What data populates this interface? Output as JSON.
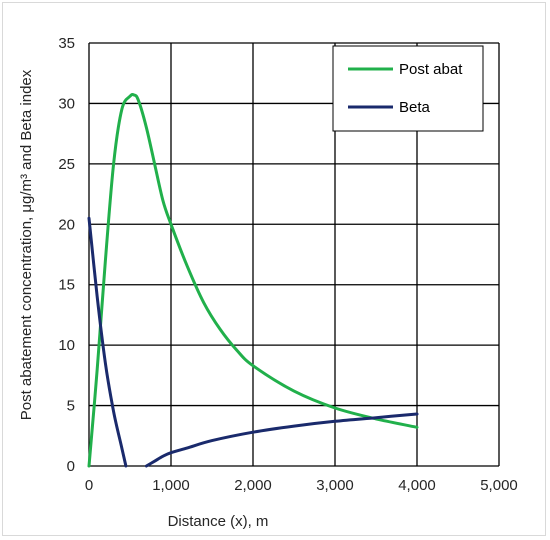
{
  "chart_data": {
    "type": "line",
    "title": "",
    "xlabel": "Distance (x), m",
    "ylabel": "Post abatement concentration, μg/m³ and Beta index",
    "xlim": [
      0,
      5000
    ],
    "ylim": [
      0,
      35
    ],
    "x_ticks": [
      0,
      1000,
      2000,
      3000,
      4000,
      5000
    ],
    "x_tick_labels": [
      "0",
      "1,000",
      "2,000",
      "3,000",
      "4,000",
      "5,000"
    ],
    "y_ticks": [
      0,
      5,
      10,
      15,
      20,
      25,
      30,
      35
    ],
    "y_tick_labels": [
      "0",
      "5",
      "10",
      "15",
      "20",
      "25",
      "30",
      "35"
    ],
    "grid": true,
    "legend_position": "top-right",
    "series": [
      {
        "name": "Post abat",
        "color": "#21b04b",
        "x": [
          0,
          100,
          200,
          300,
          400,
          500,
          550,
          600,
          700,
          800,
          900,
          1000,
          1200,
          1400,
          1600,
          1800,
          2000,
          2500,
          3000,
          3500,
          4000
        ],
        "y": [
          0,
          8,
          17,
          25,
          29.5,
          30.6,
          30.7,
          30.3,
          28,
          25,
          22,
          20,
          16.5,
          13.5,
          11.3,
          9.6,
          8.3,
          6.2,
          4.8,
          3.9,
          3.2
        ]
      },
      {
        "name": "Beta",
        "color": "#1a2a6c",
        "segments": [
          {
            "x": [
              0,
              100,
              200,
              300,
              400,
              450
            ],
            "y": [
              20.5,
              14,
              8.5,
              4.5,
              1.5,
              0
            ]
          },
          {
            "x": [
              700,
              800,
              900,
              1000,
              1200,
              1500,
              2000,
              2500,
              3000,
              3500,
              4000
            ],
            "y": [
              0,
              0.4,
              0.8,
              1.1,
              1.5,
              2.1,
              2.8,
              3.3,
              3.7,
              4.0,
              4.3
            ]
          }
        ]
      }
    ]
  }
}
